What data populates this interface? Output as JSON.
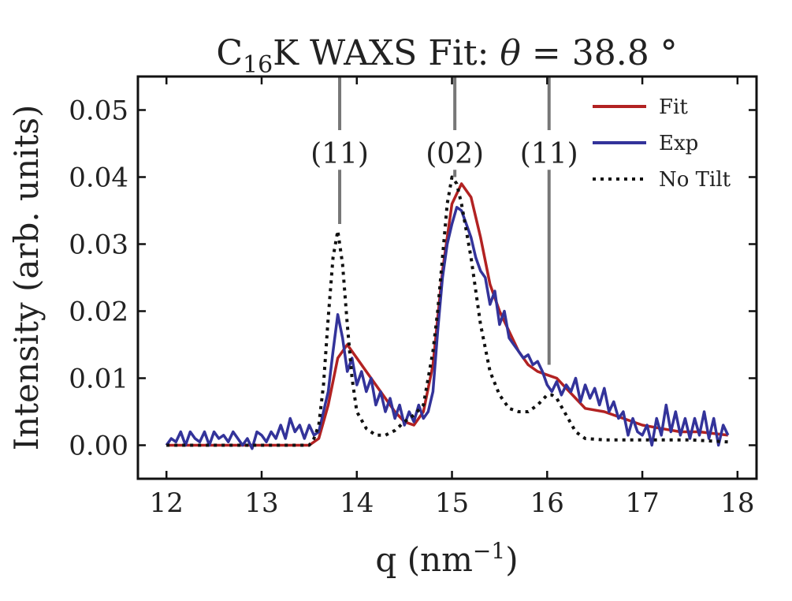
{
  "chart_data": {
    "type": "line",
    "title": {
      "prefix": "C",
      "sub": "16",
      "mid": "K WAXS Fit: ",
      "theta": "θ",
      "eq": " = 38.8 °"
    },
    "xlabel": {
      "main": "q (nm",
      "sup": "−1",
      "end": ")"
    },
    "ylabel": "Intensity (arb. units)",
    "xlim": [
      11.7,
      18.2
    ],
    "ylim": [
      -0.005,
      0.055
    ],
    "xticks": [
      12,
      13,
      14,
      15,
      16,
      17,
      18
    ],
    "xtick_labels": [
      "12",
      "13",
      "14",
      "15",
      "16",
      "17",
      "18"
    ],
    "yticks": [
      0.0,
      0.01,
      0.02,
      0.03,
      0.04,
      0.05
    ],
    "ytick_labels": [
      "0.00",
      "0.01",
      "0.02",
      "0.03",
      "0.04",
      "0.05"
    ],
    "legend_position": "top-right",
    "annotations": [
      {
        "label": "(11)",
        "x": 13.82,
        "y_top": 0.055,
        "y_bottom": 0.033
      },
      {
        "label": "(02)",
        "x": 15.03,
        "y_top": 0.055,
        "y_bottom": 0.04
      },
      {
        "label": "(11)",
        "x": 16.02,
        "y_top": 0.055,
        "y_bottom": 0.012
      }
    ],
    "series": [
      {
        "name": "Fit",
        "color": "#b22222",
        "style": "solid",
        "x": [
          12.0,
          13.5,
          13.6,
          13.7,
          13.8,
          13.9,
          14.0,
          14.1,
          14.2,
          14.3,
          14.4,
          14.5,
          14.6,
          14.7,
          14.8,
          14.9,
          15.0,
          15.1,
          15.2,
          15.3,
          15.4,
          15.5,
          15.6,
          15.7,
          15.8,
          15.9,
          16.0,
          16.1,
          16.2,
          16.3,
          16.4,
          16.6,
          16.8,
          17.0,
          17.2,
          17.4,
          17.6,
          17.9
        ],
        "y": [
          0.0,
          0.0,
          0.001,
          0.006,
          0.013,
          0.015,
          0.013,
          0.011,
          0.009,
          0.007,
          0.005,
          0.0035,
          0.003,
          0.005,
          0.012,
          0.026,
          0.036,
          0.039,
          0.037,
          0.031,
          0.024,
          0.02,
          0.017,
          0.014,
          0.012,
          0.011,
          0.0105,
          0.01,
          0.0085,
          0.007,
          0.0055,
          0.005,
          0.004,
          0.003,
          0.0025,
          0.002,
          0.002,
          0.0015
        ]
      },
      {
        "name": "Exp",
        "color": "#33339a",
        "style": "solid",
        "x": [
          12.0,
          12.05,
          12.1,
          12.15,
          12.2,
          12.25,
          12.3,
          12.35,
          12.4,
          12.45,
          12.5,
          12.55,
          12.6,
          12.65,
          12.7,
          12.75,
          12.8,
          12.85,
          12.9,
          12.95,
          13.0,
          13.05,
          13.1,
          13.15,
          13.2,
          13.25,
          13.3,
          13.35,
          13.4,
          13.45,
          13.5,
          13.55,
          13.6,
          13.65,
          13.7,
          13.75,
          13.8,
          13.85,
          13.9,
          13.95,
          14.0,
          14.05,
          14.1,
          14.15,
          14.2,
          14.25,
          14.3,
          14.35,
          14.4,
          14.45,
          14.5,
          14.55,
          14.6,
          14.65,
          14.7,
          14.75,
          14.8,
          14.85,
          14.9,
          14.95,
          15.0,
          15.05,
          15.1,
          15.15,
          15.2,
          15.25,
          15.3,
          15.35,
          15.4,
          15.45,
          15.5,
          15.55,
          15.6,
          15.65,
          15.7,
          15.75,
          15.8,
          15.85,
          15.9,
          15.95,
          16.0,
          16.05,
          16.1,
          16.15,
          16.2,
          16.25,
          16.3,
          16.35,
          16.4,
          16.45,
          16.5,
          16.55,
          16.6,
          16.65,
          16.7,
          16.75,
          16.8,
          16.85,
          16.9,
          16.95,
          17.0,
          17.05,
          17.1,
          17.15,
          17.2,
          17.25,
          17.3,
          17.35,
          17.4,
          17.45,
          17.5,
          17.55,
          17.6,
          17.65,
          17.7,
          17.75,
          17.8,
          17.85,
          17.9
        ],
        "y": [
          0.0,
          0.001,
          0.0005,
          0.002,
          0.0,
          0.002,
          0.001,
          0.0005,
          0.002,
          0.0,
          0.002,
          0.001,
          0.0015,
          0.0005,
          0.002,
          0.001,
          0.0,
          0.001,
          -0.0005,
          0.002,
          0.0015,
          0.0005,
          0.002,
          0.001,
          0.003,
          0.001,
          0.004,
          0.002,
          0.003,
          0.001,
          0.003,
          0.0015,
          0.002,
          0.005,
          0.008,
          0.014,
          0.0195,
          0.016,
          0.011,
          0.013,
          0.009,
          0.011,
          0.008,
          0.01,
          0.006,
          0.008,
          0.005,
          0.007,
          0.004,
          0.006,
          0.003,
          0.005,
          0.0035,
          0.006,
          0.004,
          0.005,
          0.008,
          0.017,
          0.025,
          0.03,
          0.033,
          0.0355,
          0.035,
          0.033,
          0.031,
          0.028,
          0.026,
          0.025,
          0.021,
          0.023,
          0.018,
          0.02,
          0.016,
          0.015,
          0.014,
          0.013,
          0.0135,
          0.012,
          0.0125,
          0.011,
          0.009,
          0.008,
          0.0095,
          0.0075,
          0.009,
          0.008,
          0.01,
          0.0065,
          0.009,
          0.007,
          0.0085,
          0.006,
          0.0085,
          0.005,
          0.0065,
          0.004,
          0.005,
          0.0015,
          0.004,
          0.002,
          0.0015,
          0.003,
          0.0,
          0.004,
          0.0015,
          0.006,
          0.002,
          0.005,
          0.0015,
          0.004,
          0.001,
          0.004,
          0.0015,
          0.005,
          0.001,
          0.004,
          0.0,
          0.003,
          0.0015
        ]
      },
      {
        "name": "No Tilt",
        "color": "#111111",
        "style": "dotted",
        "x": [
          12.0,
          13.5,
          13.55,
          13.6,
          13.65,
          13.7,
          13.75,
          13.8,
          13.85,
          13.9,
          13.95,
          14.0,
          14.1,
          14.2,
          14.3,
          14.4,
          14.5,
          14.6,
          14.7,
          14.8,
          14.85,
          14.9,
          14.95,
          15.0,
          15.05,
          15.1,
          15.15,
          15.2,
          15.3,
          15.4,
          15.5,
          15.6,
          15.7,
          15.8,
          15.9,
          16.0,
          16.05,
          16.1,
          16.2,
          16.3,
          16.4,
          16.6,
          17.0,
          17.5,
          17.9
        ],
        "y": [
          0.0,
          0.0,
          0.001,
          0.003,
          0.009,
          0.019,
          0.028,
          0.032,
          0.027,
          0.018,
          0.01,
          0.005,
          0.0025,
          0.0015,
          0.0015,
          0.0022,
          0.0035,
          0.0045,
          0.006,
          0.014,
          0.02,
          0.028,
          0.036,
          0.04,
          0.039,
          0.036,
          0.032,
          0.028,
          0.018,
          0.011,
          0.0075,
          0.0055,
          0.005,
          0.005,
          0.006,
          0.0075,
          0.0075,
          0.007,
          0.0045,
          0.002,
          0.001,
          0.0008,
          0.0008,
          0.0008,
          0.0005
        ]
      }
    ]
  }
}
